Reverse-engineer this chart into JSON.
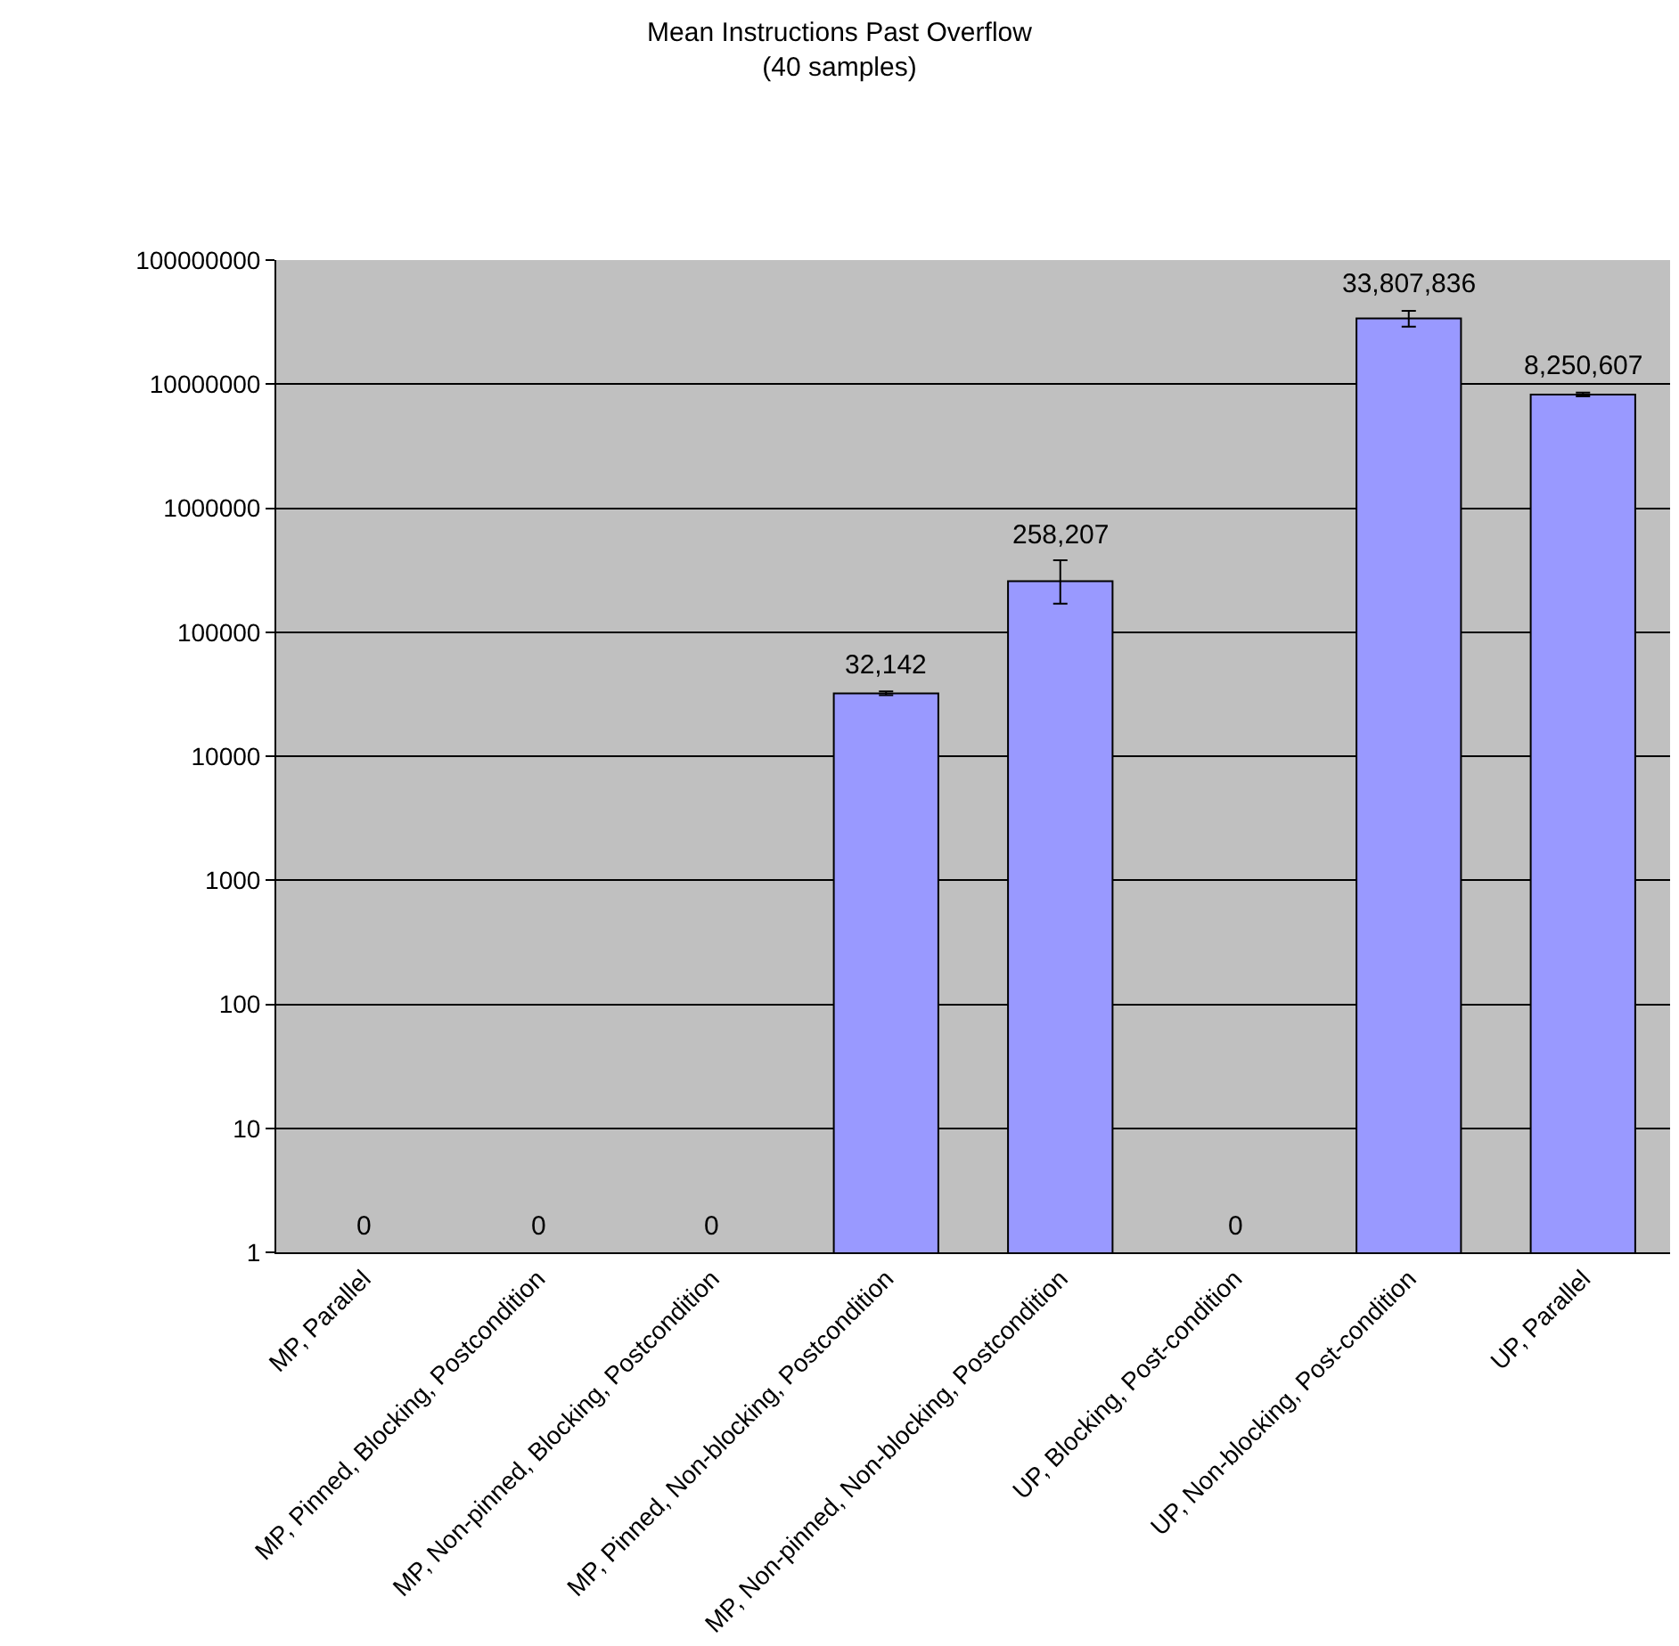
{
  "chart_data": {
    "type": "bar",
    "title": "Mean Instructions Past Overflow",
    "subtitle": "(40 samples)",
    "categories": [
      "MP, Parallel",
      "MP, Pinned, Blocking, Postcondition",
      "MP, Non-pinned, Blocking, Postcondition",
      "MP, Pinned, Non-blocking, Postcondition",
      "MP, Non-pinned, Non-blocking, Postcondition",
      "UP, Blocking, Post-condition",
      "UP, Non-blocking, Post-condition",
      "UP, Parallel"
    ],
    "values": [
      null,
      null,
      null,
      32142,
      258207,
      null,
      33807836,
      8250607
    ],
    "value_labels": [
      "0",
      "0",
      "0",
      "32,142",
      "258,207",
      "0",
      "33,807,836",
      "8,250,607"
    ],
    "errors": [
      null,
      null,
      null,
      [
        31000,
        33300
      ],
      [
        170000,
        380000
      ],
      null,
      [
        29000000,
        39000000
      ],
      [
        7950000,
        8550000
      ]
    ],
    "color": "#9999ff",
    "log": true,
    "ylim": [
      1,
      100000000
    ],
    "yticks": [
      1,
      10,
      100,
      1000,
      10000,
      100000,
      1000000,
      10000000,
      100000000
    ],
    "grid": "y",
    "legend": false
  }
}
